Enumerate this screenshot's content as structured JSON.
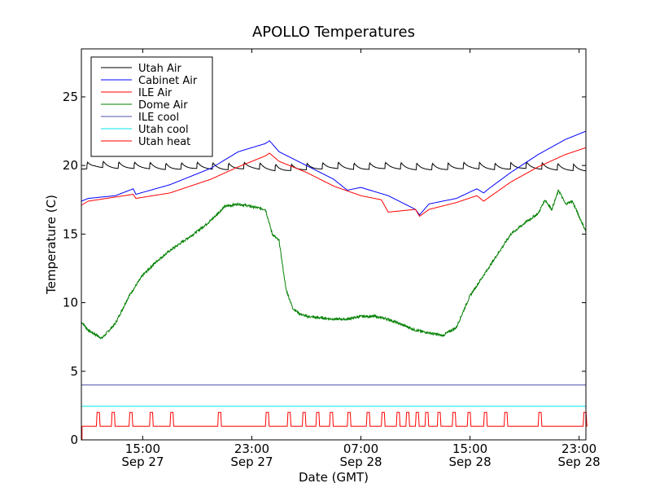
{
  "chart_data": {
    "type": "line",
    "title": "APOLLO Temperatures",
    "xlabel": "Date (GMT)",
    "ylabel": "Temperature (C)",
    "ylim": [
      0,
      28.5
    ],
    "xlim_hours": [
      10.5,
      47.5
    ],
    "y_ticks": [
      0,
      5,
      10,
      15,
      20,
      25
    ],
    "x_ticks": [
      {
        "hour": 15,
        "time": "15:00",
        "date": "Sep 27"
      },
      {
        "hour": 23,
        "time": "23:00",
        "date": "Sep 27"
      },
      {
        "hour": 31,
        "time": "07:00",
        "date": "Sep 28"
      },
      {
        "hour": 39,
        "time": "15:00",
        "date": "Sep 28"
      },
      {
        "hour": 47,
        "time": "23:00",
        "date": "Sep 28"
      }
    ],
    "legend_position": "top-left",
    "series": [
      {
        "name": "Utah Air",
        "color": "#000000",
        "x": [
          10.5,
          11.5,
          13,
          15,
          17,
          19,
          21,
          23,
          25,
          27,
          29,
          31,
          33,
          35,
          37,
          39,
          41,
          43,
          45,
          47.5
        ],
        "y": [
          19.8,
          20.0,
          19.9,
          19.9,
          19.8,
          19.9,
          19.8,
          19.9,
          19.7,
          19.8,
          19.9,
          19.8,
          19.9,
          19.8,
          19.8,
          19.9,
          19.8,
          19.9,
          19.8,
          19.7
        ],
        "sawtooth": {
          "amplitude": 0.9,
          "period_hours": 1.15
        }
      },
      {
        "name": "Cabinet Air",
        "color": "#0000ff",
        "x": [
          10.5,
          11,
          13,
          14.3,
          14.5,
          17,
          20,
          22,
          24,
          24.3,
          25,
          27,
          29,
          30,
          31,
          33,
          35,
          35.3,
          36,
          38,
          39.5,
          40,
          40.5,
          42,
          44,
          46,
          47.5
        ],
        "y": [
          17.4,
          17.6,
          17.8,
          18.3,
          17.9,
          18.6,
          19.8,
          21.0,
          21.6,
          21.8,
          21.0,
          20.0,
          19.0,
          18.2,
          18.4,
          17.8,
          16.8,
          16.4,
          17.2,
          17.6,
          18.3,
          18.0,
          18.4,
          19.5,
          20.8,
          21.9,
          22.5
        ],
        "sawtooth": null
      },
      {
        "name": "ILE Air",
        "color": "#ff0000",
        "x": [
          10.5,
          11,
          13,
          14.3,
          14.5,
          17,
          20,
          22,
          24,
          24.3,
          25,
          27,
          29,
          31,
          32.5,
          33,
          35,
          35.3,
          36,
          38,
          39.5,
          40,
          42,
          44,
          46,
          47.5
        ],
        "y": [
          17.1,
          17.4,
          17.7,
          17.9,
          17.6,
          18.0,
          19.0,
          19.9,
          20.7,
          20.9,
          20.3,
          19.5,
          18.5,
          17.8,
          17.5,
          16.6,
          16.8,
          16.3,
          16.8,
          17.3,
          17.8,
          17.4,
          18.8,
          19.9,
          20.8,
          21.3
        ],
        "sawtooth": null
      },
      {
        "name": "Dome Air",
        "color": "#008000",
        "x": [
          10.5,
          11,
          12,
          13,
          14,
          15,
          16,
          17,
          18,
          19,
          20,
          21,
          22,
          23,
          24,
          24.5,
          25,
          25.5,
          26,
          26.5,
          27,
          28,
          29,
          30,
          31,
          32,
          33,
          34,
          35,
          36,
          37,
          38,
          39,
          40,
          41,
          42,
          43,
          44,
          44.5,
          45,
          45.5,
          46,
          46.5,
          47,
          47.5
        ],
        "y": [
          8.6,
          8.0,
          7.4,
          8.5,
          10.5,
          12.0,
          13.0,
          13.8,
          14.5,
          15.2,
          16.0,
          17.0,
          17.2,
          17.0,
          16.8,
          15.0,
          14.5,
          11.0,
          9.6,
          9.2,
          9.0,
          8.9,
          8.8,
          8.8,
          9.0,
          9.0,
          8.8,
          8.4,
          8.0,
          7.8,
          7.6,
          8.2,
          10.5,
          12.0,
          13.5,
          15.0,
          15.8,
          16.5,
          17.5,
          16.8,
          18.2,
          17.2,
          17.4,
          16.3,
          15.2
        ],
        "sawtooth": null
      },
      {
        "name": "ILE cool",
        "color": "#5050a8",
        "x": [
          10.5,
          47.5
        ],
        "y": [
          4.0,
          4.0
        ],
        "sawtooth": null
      },
      {
        "name": "Utah cool",
        "color": "#00e5e5",
        "x": [
          10.5,
          47.5
        ],
        "y": [
          2.45,
          2.45
        ],
        "sawtooth": null
      },
      {
        "name": "Utah heat",
        "color": "#ff0000",
        "x": [
          10.5,
          47.5
        ],
        "y": [
          1.0,
          1.0
        ],
        "sawtooth": null,
        "low": 1.0,
        "high": 2.0,
        "pulse_starts": [
          11.6,
          12.7,
          14.0,
          15.5,
          17.0,
          20.5,
          24.0,
          25.6,
          26.7,
          27.7,
          28.7,
          30.0,
          31.4,
          32.5,
          33.6,
          34.3,
          35.0,
          35.7,
          36.6,
          37.7,
          38.8,
          40.0,
          41.5,
          44.0,
          47.3
        ],
        "pulse_width": 0.22
      }
    ]
  }
}
